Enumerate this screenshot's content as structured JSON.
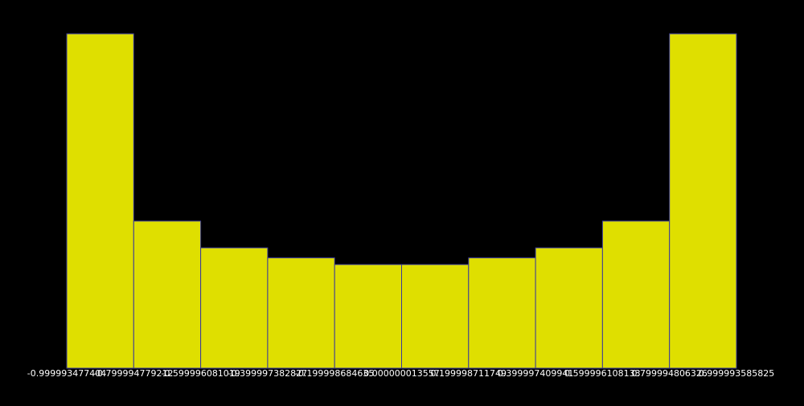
{
  "chart_data": {
    "type": "bar",
    "title": "",
    "xlabel": "",
    "ylabel": "",
    "bin_edge_labels": [
      "-0.999993477404",
      "-0.799994779212",
      "-0.599996081019",
      "-0.399997382827",
      "-0.199998684635",
      "0.000000013557",
      "0.199998711749",
      "0.399997409941",
      "0.599996108133",
      "0.799994806326",
      "0.999993585825"
    ],
    "values": [
      100,
      44,
      36,
      33,
      31,
      31,
      33,
      36,
      44,
      100
    ],
    "ylim": [
      0,
      100
    ],
    "grid": false,
    "legend": "none",
    "bar_color": "#dfdf00",
    "bar_edge_color": "#3a3a9a",
    "background_color": "#000000",
    "tick_label_color": "#ffffff"
  }
}
